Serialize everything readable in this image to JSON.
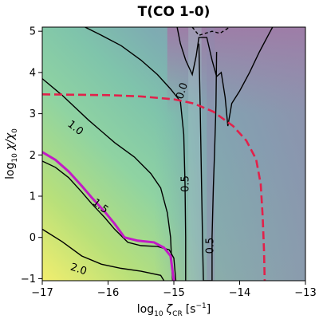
{
  "chart_data": {
    "type": "heatmap",
    "title": "T(CO 1-0)",
    "xlabel_main": "log",
    "xlabel_sub": "10",
    "xlabel_greek": "ζ",
    "xlabel_greek_sub": "CR",
    "xlabel_units": "[s",
    "xlabel_units_sup": "−1",
    "xlabel_units_end": "]",
    "ylabel_main": "log",
    "ylabel_sub": "10",
    "ylabel_greek": "χ/χ",
    "ylabel_greek_sub": "0",
    "xlim": [
      -17,
      -13
    ],
    "ylim": [
      -1.05,
      5.1
    ],
    "x_ticks": [
      -17,
      -16,
      -15,
      -14,
      -13
    ],
    "x_tick_labels": [
      "−17",
      "−16",
      "−15",
      "−14",
      "−13"
    ],
    "y_ticks": [
      -1,
      0,
      1,
      2,
      3,
      4,
      5
    ],
    "y_tick_labels": [
      "−1",
      "0",
      "1",
      "2",
      "3",
      "4",
      "5"
    ],
    "colormap_stops": [
      "#f2ee6e",
      "#b8e07a",
      "#8fd3a2",
      "#7fc4ab",
      "#7eacb2",
      "#8d95ae",
      "#9b7fa8"
    ],
    "contours": [
      {
        "level": "2.0",
        "color": "#000000",
        "style": "solid",
        "points": [
          [
            -17,
            0.2
          ],
          [
            -16.7,
            -0.1
          ],
          [
            -16.4,
            -0.45
          ],
          [
            -16.1,
            -0.65
          ],
          [
            -15.8,
            -0.75
          ],
          [
            -15.5,
            -0.82
          ],
          [
            -15.2,
            -0.92
          ],
          [
            -15.15,
            -1.05
          ]
        ]
      },
      {
        "level": "1.5",
        "color": "#000000",
        "style": "solid",
        "points": [
          [
            -17,
            1.85
          ],
          [
            -16.8,
            1.7
          ],
          [
            -16.6,
            1.45
          ],
          [
            -16.4,
            1.1
          ],
          [
            -16.25,
            0.82
          ],
          [
            -16.05,
            0.48
          ],
          [
            -15.9,
            0.2
          ],
          [
            -15.7,
            -0.12
          ],
          [
            -15.5,
            -0.2
          ],
          [
            -15.25,
            -0.22
          ],
          [
            -15.07,
            -0.3
          ],
          [
            -15.0,
            -0.5
          ],
          [
            -14.97,
            -1.05
          ]
        ]
      },
      {
        "level": "1.0",
        "color": "#000000",
        "style": "solid",
        "points": [
          [
            -17,
            3.85
          ],
          [
            -16.7,
            3.45
          ],
          [
            -16.3,
            2.85
          ],
          [
            -15.9,
            2.3
          ],
          [
            -15.6,
            1.95
          ],
          [
            -15.35,
            1.55
          ],
          [
            -15.2,
            1.2
          ],
          [
            -15.1,
            0.6
          ],
          [
            -15.05,
            0.0
          ],
          [
            -15.03,
            -0.7
          ],
          [
            -15.02,
            -1.05
          ]
        ]
      },
      {
        "level": "0.5",
        "color": "#000000",
        "style": "solid",
        "points": [
          [
            -16.35,
            5.1
          ],
          [
            -16.1,
            4.9
          ],
          [
            -15.8,
            4.65
          ],
          [
            -15.5,
            4.3
          ],
          [
            -15.25,
            3.95
          ],
          [
            -15.05,
            3.6
          ],
          [
            -14.9,
            3.3
          ],
          [
            -14.85,
            2.5
          ],
          [
            -14.83,
            1.3
          ],
          [
            -14.82,
            0.0
          ],
          [
            -14.82,
            -1.05
          ]
        ]
      },
      {
        "level": "0.5",
        "color": "#000000",
        "style": "solid",
        "points": [
          [
            -14.62,
            4.7
          ],
          [
            -14.6,
            3.2
          ],
          [
            -14.58,
            1.3
          ],
          [
            -14.56,
            -0.4
          ],
          [
            -14.55,
            -1.05
          ],
          [
            -14.42,
            -1.05
          ],
          [
            -14.42,
            0.0
          ],
          [
            -14.4,
            1.2
          ],
          [
            -14.38,
            2.1
          ],
          [
            -14.36,
            3.2
          ],
          [
            -14.35,
            4.5
          ]
        ]
      },
      {
        "level": "0.0",
        "color": "#000000",
        "style": "solid",
        "points": [
          [
            -14.95,
            5.1
          ],
          [
            -14.9,
            4.7
          ],
          [
            -14.82,
            4.3
          ],
          [
            -14.72,
            3.95
          ],
          [
            -14.66,
            4.4
          ],
          [
            -14.62,
            4.85
          ],
          [
            -14.5,
            4.85
          ],
          [
            -14.42,
            4.3
          ],
          [
            -14.35,
            3.9
          ],
          [
            -14.28,
            4.0
          ],
          [
            -14.22,
            3.4
          ],
          [
            -14.18,
            2.7
          ],
          [
            -14.12,
            3.25
          ],
          [
            -14.0,
            3.55
          ],
          [
            -13.85,
            4.0
          ],
          [
            -13.7,
            4.5
          ],
          [
            -13.55,
            4.95
          ],
          [
            -13.5,
            5.1
          ]
        ]
      },
      {
        "level": "neg",
        "color": "#000000",
        "style": "dashed",
        "points": [
          [
            -14.72,
            5.1
          ],
          [
            -14.62,
            4.9
          ],
          [
            -14.42,
            5.0
          ],
          [
            -14.3,
            4.95
          ],
          [
            -14.15,
            5.1
          ]
        ]
      }
    ],
    "contour_labels": [
      {
        "text": "2.0",
        "x": -16.45,
        "y": -0.78,
        "angle": 18
      },
      {
        "text": "1.5",
        "x": -16.12,
        "y": 0.75,
        "angle": 38
      },
      {
        "text": "1.0",
        "x": -16.5,
        "y": 2.65,
        "angle": 38
      },
      {
        "text": "0.5",
        "x": -14.82,
        "y": 1.3,
        "angle": -90
      },
      {
        "text": "0.5",
        "x": -14.44,
        "y": -0.2,
        "angle": -90
      },
      {
        "text": "0.0",
        "x": -14.87,
        "y": 3.55,
        "angle": -72
      }
    ],
    "highlight_contour": {
      "color": "#c21bc6",
      "points": [
        [
          -17,
          2.07
        ],
        [
          -16.8,
          1.88
        ],
        [
          -16.6,
          1.6
        ],
        [
          -16.4,
          1.25
        ],
        [
          -16.25,
          0.97
        ],
        [
          -16.05,
          0.62
        ],
        [
          -15.9,
          0.33
        ],
        [
          -15.75,
          0.0
        ],
        [
          -15.55,
          -0.08
        ],
        [
          -15.3,
          -0.12
        ],
        [
          -15.15,
          -0.25
        ],
        [
          -15.05,
          -0.45
        ],
        [
          -15.0,
          -1.05
        ]
      ]
    },
    "boundary_curve": {
      "color": "#e2214a",
      "style": "dashed",
      "points": [
        [
          -17,
          3.47
        ],
        [
          -16.5,
          3.46
        ],
        [
          -16.0,
          3.45
        ],
        [
          -15.5,
          3.42
        ],
        [
          -15.0,
          3.35
        ],
        [
          -14.7,
          3.25
        ],
        [
          -14.4,
          3.05
        ],
        [
          -14.1,
          2.7
        ],
        [
          -13.9,
          2.35
        ],
        [
          -13.75,
          1.9
        ],
        [
          -13.68,
          1.3
        ],
        [
          -13.65,
          0.5
        ],
        [
          -13.63,
          -0.3
        ],
        [
          -13.62,
          -1.05
        ]
      ]
    }
  }
}
